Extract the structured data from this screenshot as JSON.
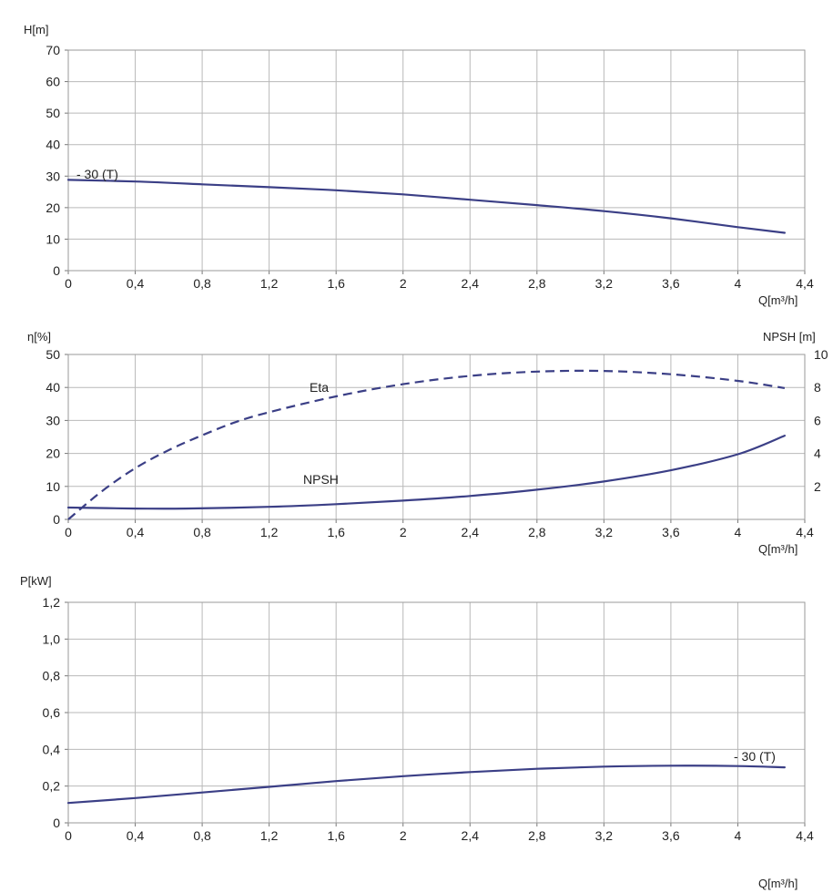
{
  "colors": {
    "curve": "#3b3f86",
    "grid": "#b9b9b9"
  },
  "chart_data": [
    {
      "type": "line",
      "id": "head",
      "ylabel": "H[m]",
      "xlabel": "Q[m³/h]",
      "xlim": [
        0,
        4.4
      ],
      "ylim": [
        0,
        70
      ],
      "x_ticks": [
        "0",
        "0,4",
        "0,8",
        "1,2",
        "1,6",
        "2",
        "2,4",
        "2,8",
        "3,2",
        "3,6",
        "4",
        "4,4"
      ],
      "y_ticks": [
        "0",
        "10",
        "20",
        "30",
        "40",
        "50",
        "60",
        "70"
      ],
      "grid": true,
      "series": [
        {
          "name": "- 30 (T)",
          "x": [
            0,
            0.4,
            0.8,
            1.2,
            1.6,
            2.0,
            2.4,
            2.8,
            3.2,
            3.6,
            4.0,
            4.28
          ],
          "y": [
            28.8,
            28.3,
            27.4,
            26.5,
            25.5,
            24.2,
            22.5,
            20.8,
            18.9,
            16.6,
            13.8,
            12.0
          ]
        }
      ]
    },
    {
      "type": "line",
      "id": "efficiency",
      "ylabel": "η[%]",
      "y2label": "NPSH [m]",
      "xlabel": "Q[m³/h]",
      "xlim": [
        0,
        4.4
      ],
      "ylim": [
        0,
        50
      ],
      "y2lim": [
        0,
        10
      ],
      "x_ticks": [
        "0",
        "0,4",
        "0,8",
        "1,2",
        "1,6",
        "2",
        "2,4",
        "2,8",
        "3,2",
        "3,6",
        "4",
        "4,4"
      ],
      "y_ticks": [
        "0",
        "10",
        "20",
        "30",
        "40",
        "50"
      ],
      "y2_ticks": [
        "2",
        "4",
        "6",
        "8",
        "10"
      ],
      "grid": true,
      "series": [
        {
          "name": "Eta",
          "axis": "left",
          "style": "dashed",
          "x": [
            0,
            0.2,
            0.4,
            0.6,
            0.8,
            1.0,
            1.2,
            1.6,
            2.0,
            2.4,
            2.8,
            3.2,
            3.6,
            4.0,
            4.28
          ],
          "y": [
            0,
            8.5,
            15.5,
            21.0,
            25.5,
            29.5,
            32.5,
            37.3,
            41.0,
            43.5,
            44.8,
            45.0,
            44.0,
            42.0,
            39.8
          ]
        },
        {
          "name": "NPSH",
          "axis": "right",
          "style": "solid",
          "x": [
            0,
            0.4,
            0.7,
            1.2,
            1.6,
            2.0,
            2.4,
            2.8,
            3.2,
            3.6,
            4.0,
            4.28
          ],
          "y": [
            0.72,
            0.66,
            0.66,
            0.76,
            0.92,
            1.14,
            1.42,
            1.8,
            2.3,
            2.98,
            3.95,
            5.08
          ]
        }
      ]
    },
    {
      "type": "line",
      "id": "power",
      "ylabel": "P[kW]",
      "xlabel": "Q[m³/h]",
      "xlim": [
        0,
        4.4
      ],
      "ylim": [
        0,
        1.2
      ],
      "x_ticks": [
        "0",
        "0,4",
        "0,8",
        "1,2",
        "1,6",
        "2",
        "2,4",
        "2,8",
        "3,2",
        "3,6",
        "4",
        "4,4"
      ],
      "y_ticks": [
        "0",
        "0,2",
        "0,4",
        "0,6",
        "0,8",
        "1,0",
        "1,2"
      ],
      "grid": true,
      "series": [
        {
          "name": "- 30 (T)",
          "x": [
            0,
            0.4,
            0.8,
            1.2,
            1.6,
            2.0,
            2.4,
            2.8,
            3.2,
            3.6,
            4.0,
            4.28
          ],
          "y": [
            0.108,
            0.135,
            0.165,
            0.196,
            0.227,
            0.254,
            0.276,
            0.294,
            0.306,
            0.311,
            0.309,
            0.302
          ]
        }
      ]
    }
  ]
}
